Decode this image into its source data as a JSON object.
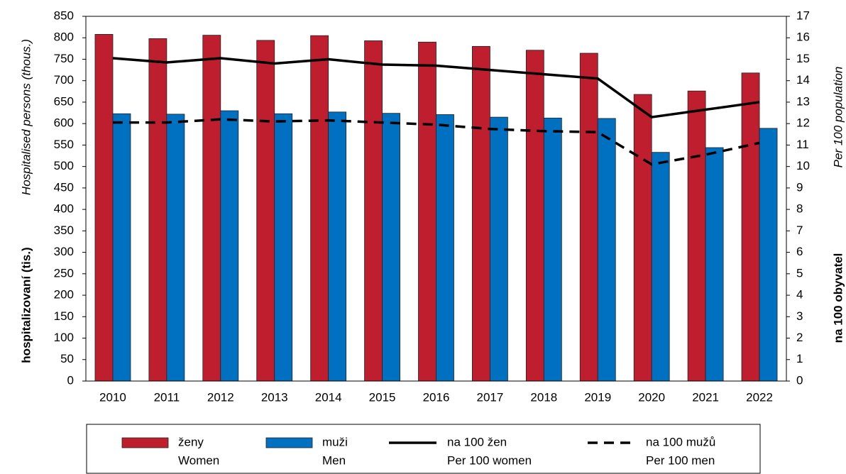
{
  "chart_data": {
    "type": "bar_line",
    "categories": [
      "2010",
      "2011",
      "2012",
      "2013",
      "2014",
      "2015",
      "2016",
      "2017",
      "2018",
      "2019",
      "2020",
      "2021",
      "2022"
    ],
    "series": [
      {
        "name": "ženy",
        "name_en": "Women",
        "kind": "bar",
        "color": "#be1e2d",
        "values": [
          808,
          798,
          806,
          794,
          805,
          793,
          790,
          780,
          771,
          764,
          668,
          676,
          718
        ]
      },
      {
        "name": "muži",
        "name_en": "Men",
        "kind": "bar",
        "color": "#0070c0",
        "values": [
          623,
          622,
          630,
          623,
          627,
          624,
          621,
          615,
          613,
          612,
          533,
          544,
          589
        ]
      },
      {
        "name": "na 100 žen",
        "name_en": "Per 100 women",
        "kind": "line",
        "dash": false,
        "color": "#000000",
        "axis": "y2",
        "values": [
          15.05,
          14.85,
          15.05,
          14.8,
          15.0,
          14.75,
          14.7,
          14.5,
          14.3,
          14.1,
          12.3,
          12.65,
          13.0
        ]
      },
      {
        "name": "na 100 mužů",
        "name_en": "Per 100 men",
        "kind": "line",
        "dash": true,
        "color": "#000000",
        "axis": "y2",
        "values": [
          12.05,
          12.05,
          12.2,
          12.1,
          12.15,
          12.05,
          11.95,
          11.75,
          11.65,
          11.6,
          10.1,
          10.55,
          11.1
        ]
      }
    ],
    "ylabel": "hospitalizovaní (tis.)",
    "ylabel_en": "Hospitalised persons (thous.)",
    "y2label": "na 100 obyvatel",
    "y2label_en": "Per 100 population",
    "ylim": [
      0,
      850
    ],
    "yticks": [
      0,
      50,
      100,
      150,
      200,
      250,
      300,
      350,
      400,
      450,
      500,
      550,
      600,
      650,
      700,
      750,
      800,
      850
    ],
    "y2lim": [
      0,
      17
    ],
    "y2ticks": [
      0,
      1,
      2,
      3,
      4,
      5,
      6,
      7,
      8,
      9,
      10,
      11,
      12,
      13,
      14,
      15,
      16,
      17
    ]
  }
}
